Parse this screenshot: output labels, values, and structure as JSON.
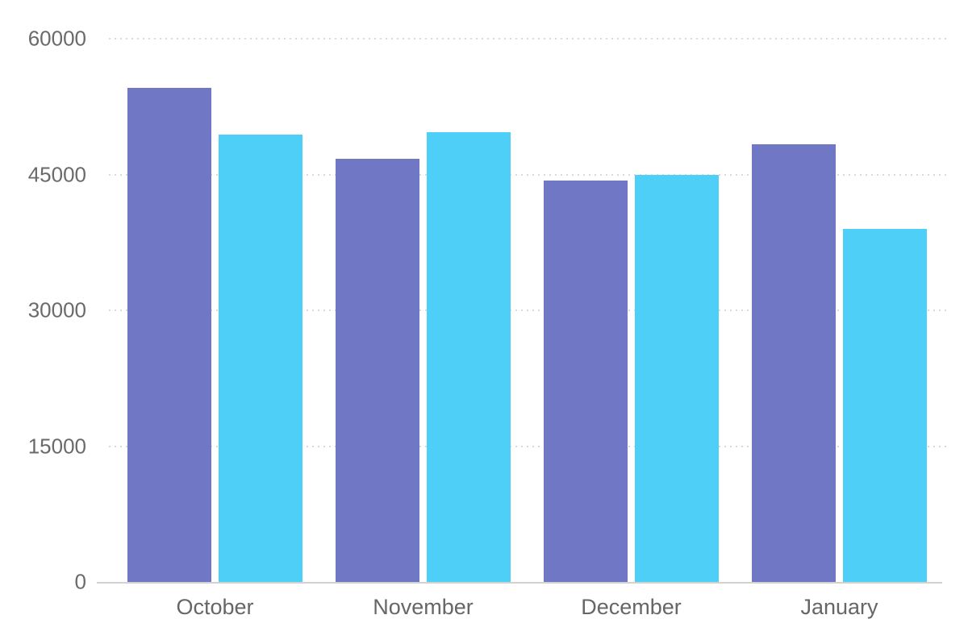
{
  "chart_data": {
    "type": "bar",
    "title": "",
    "xlabel": "",
    "ylabel": "",
    "categories": [
      "October",
      "November",
      "December",
      "January"
    ],
    "series": [
      {
        "name": "purple",
        "color": "#7078C5",
        "values": [
          54600,
          46700,
          44300,
          48300
        ]
      },
      {
        "name": "cyan",
        "color": "#4DCFF7",
        "values": [
          49400,
          49700,
          45000,
          39000
        ]
      }
    ],
    "ylim": [
      0,
      60000
    ],
    "yticks": [
      0,
      15000,
      30000,
      45000,
      60000
    ],
    "ytick_labels": [
      "0",
      "15000",
      "30000",
      "45000",
      "60000"
    ],
    "grid": "horizontal-dotted",
    "legend_position": "none"
  },
  "colors": {
    "background": "#FFFFFF",
    "bar_purple": "#7078C5",
    "bar_cyan": "#4DCFF7",
    "gridline": "#D9D9D9",
    "axis_line": "#D2D2D2",
    "tick_text": "#6A6A6A"
  }
}
